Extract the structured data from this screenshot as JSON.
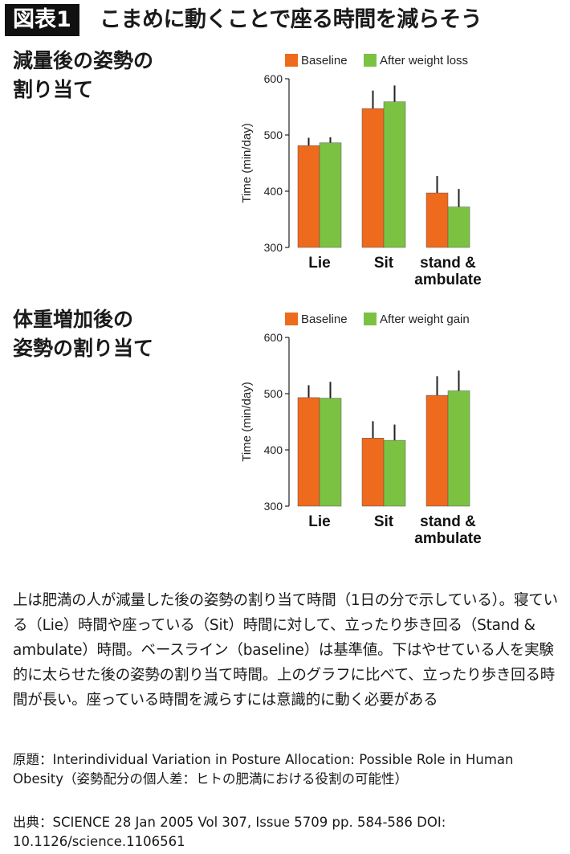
{
  "header": {
    "badge": "図表1",
    "title": "こまめに動くことで座る時間を減らそう"
  },
  "colors": {
    "baseline": "#ee6a1c",
    "after": "#7cc242",
    "error_bar": "#222222"
  },
  "sections": [
    {
      "label_line1": "減量後の姿勢の",
      "label_line2": "割り当て"
    },
    {
      "label_line1": "体重増加後の",
      "label_line2": "姿勢の割り当て"
    }
  ],
  "chart_data": [
    {
      "type": "bar",
      "categories": [
        "Lie",
        "Sit",
        "stand & ambulate"
      ],
      "category_lines": [
        [
          "Lie"
        ],
        [
          "Sit"
        ],
        [
          "stand &",
          "ambulate"
        ]
      ],
      "ylabel": "Time (min/day)",
      "ylim": [
        300,
        600
      ],
      "yticks": [
        300,
        400,
        500,
        600
      ],
      "legend_position": "top",
      "series": [
        {
          "name": "Baseline",
          "color": "#ee6a1c",
          "values": [
            481,
            547,
            397
          ],
          "errors": [
            14,
            32,
            30
          ]
        },
        {
          "name": "After weight loss",
          "color": "#7cc242",
          "values": [
            486,
            559,
            372
          ],
          "errors": [
            10,
            29,
            32
          ]
        }
      ]
    },
    {
      "type": "bar",
      "categories": [
        "Lie",
        "Sit",
        "stand & ambulate"
      ],
      "category_lines": [
        [
          "Lie"
        ],
        [
          "Sit"
        ],
        [
          "stand &",
          "ambulate"
        ]
      ],
      "ylabel": "Time (min/day)",
      "ylim": [
        300,
        600
      ],
      "yticks": [
        300,
        400,
        500,
        600
      ],
      "legend_position": "top",
      "series": [
        {
          "name": "Baseline",
          "color": "#ee6a1c",
          "values": [
            493,
            421,
            497
          ],
          "errors": [
            22,
            30,
            34
          ]
        },
        {
          "name": "After weight gain",
          "color": "#7cc242",
          "values": [
            492,
            417,
            505
          ],
          "errors": [
            29,
            28,
            36
          ]
        }
      ]
    }
  ],
  "caption": "上は肥満の人が減量した後の姿勢の割り当て時間（1日の分で示している）。寝ている（Lie）時間や座っている（Sit）時間に対して、立ったり歩き回る（Stand & ambulate）時間。ベースライン（baseline）は基準値。下はやせている人を実験的に太らせた後の姿勢の割り当て時間。上のグラフに比べて、立ったり歩き回る時間が長い。座っている時間を減らすには意識的に動く必要がある",
  "source": {
    "original": "原題：Interindividual Variation in Posture Allocation: Possible Role in Human Obesity（姿勢配分の個人差：ヒトの肥満における役割の可能性）",
    "citation": "出典：SCIENCE 28 Jan 2005 Vol 307, Issue 5709 pp. 584-586 DOI: 10.1126/science.1106561"
  }
}
